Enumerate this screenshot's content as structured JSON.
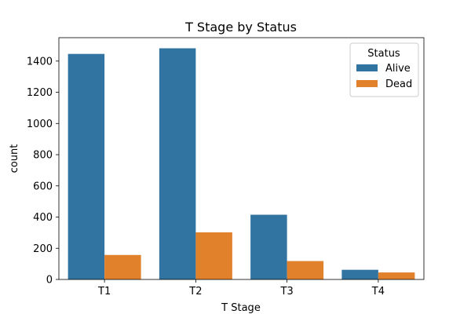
{
  "chart_data": {
    "type": "bar",
    "title": "T Stage by Status",
    "xlabel": "T Stage",
    "ylabel": "count",
    "categories": [
      "T1",
      "T2",
      "T3",
      "T4"
    ],
    "series": [
      {
        "name": "Alive",
        "values": [
          1446,
          1482,
          415,
          62
        ],
        "color": "#3274a1"
      },
      {
        "name": "Dead",
        "values": [
          157,
          302,
          118,
          45
        ],
        "color": "#e1812c"
      }
    ],
    "ylim": [
      0,
      1550
    ],
    "yticks": [
      0,
      200,
      400,
      600,
      800,
      1000,
      1200,
      1400
    ],
    "grid": false,
    "legend": {
      "title": "Status",
      "placement": "top-right"
    }
  }
}
